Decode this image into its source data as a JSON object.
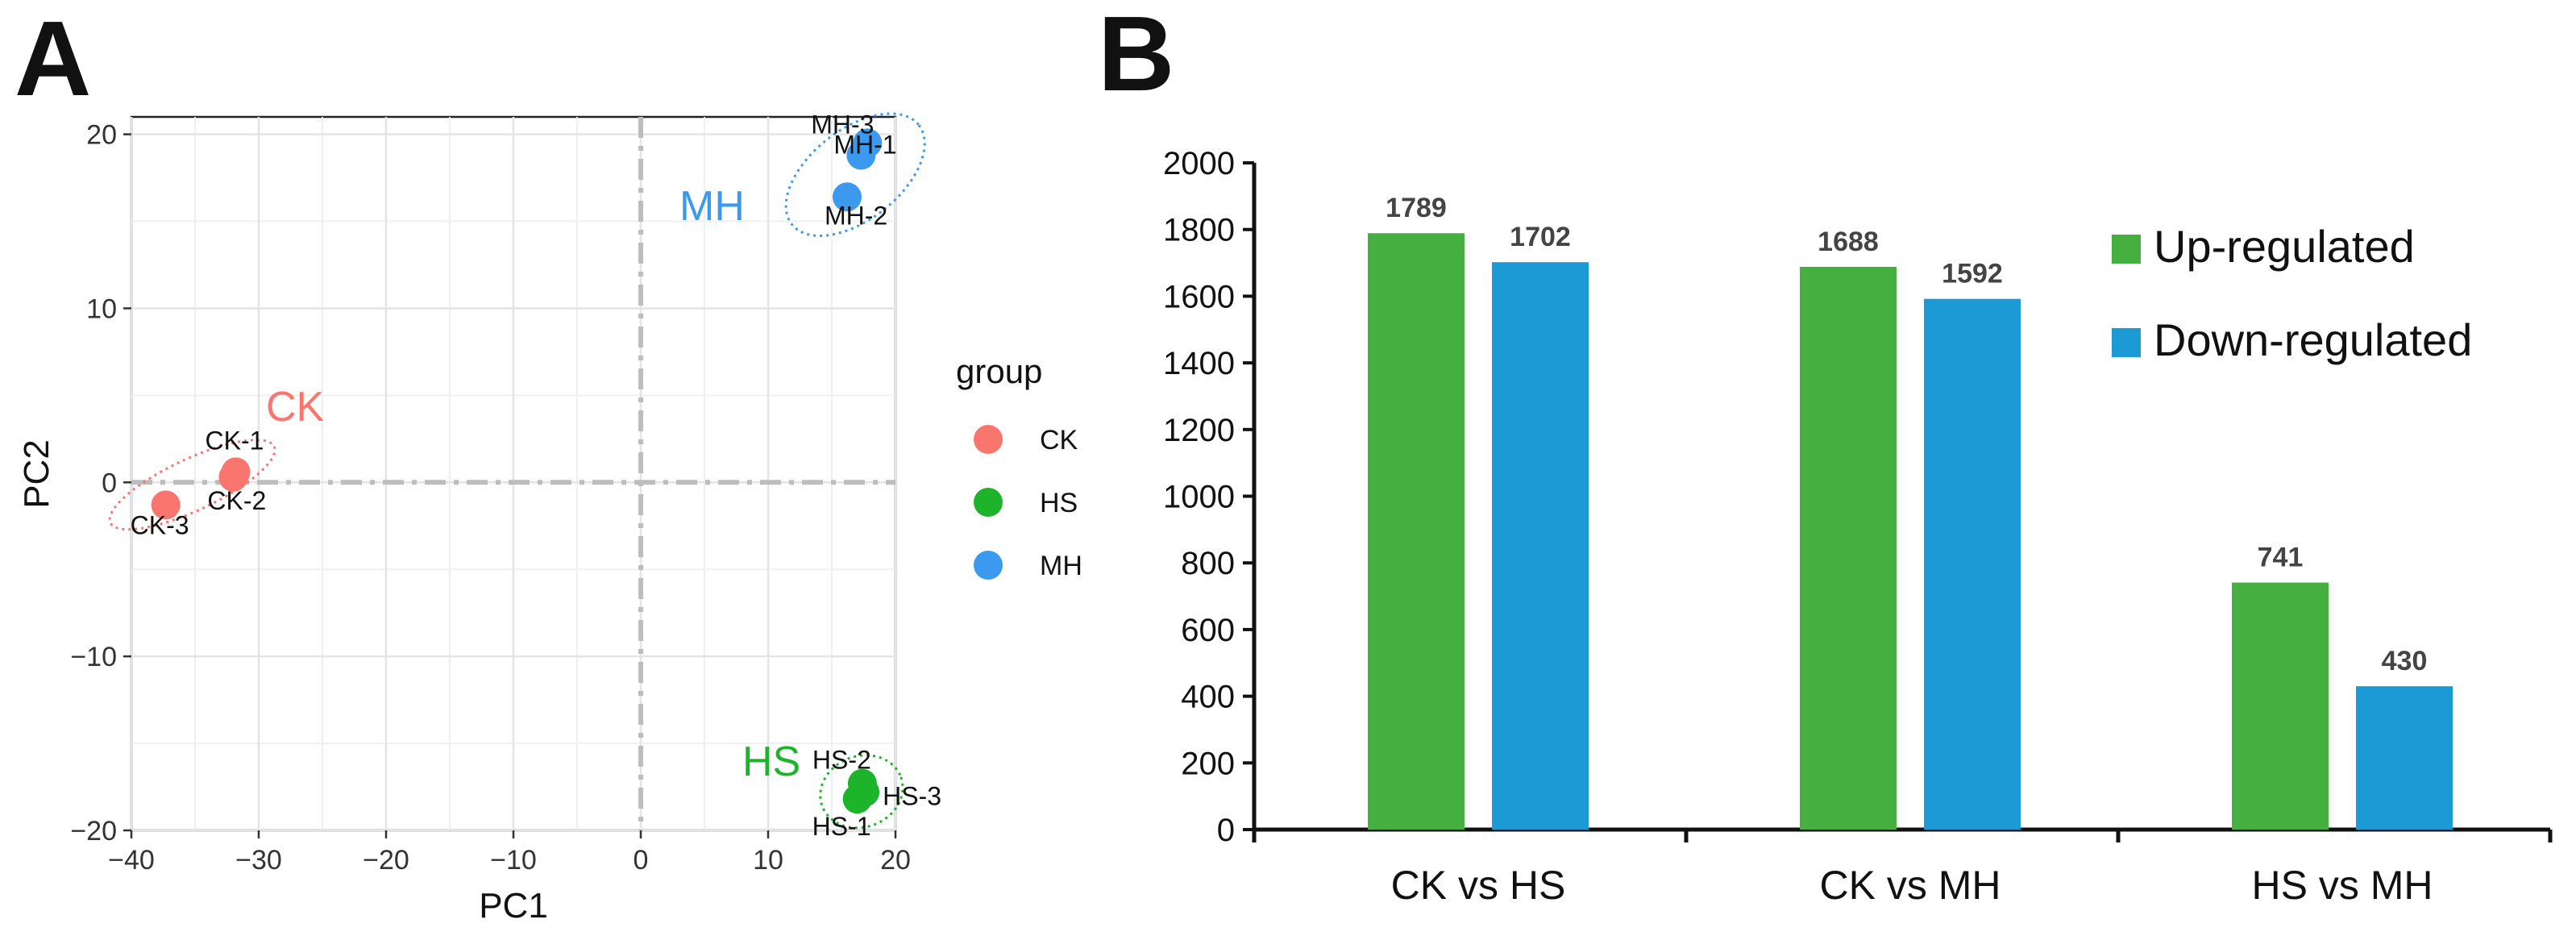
{
  "panels": {
    "a": "A",
    "b": "B"
  },
  "colors": {
    "ck": "#F8766D",
    "hs": "#1DB32B",
    "mh": "#3B9AF0",
    "up": "#45B03F",
    "down": "#1B9AD6"
  },
  "chart_data": [
    {
      "type": "scatter",
      "xlabel": "PC1",
      "ylabel": "PC2",
      "xlim": [
        -40,
        20
      ],
      "ylim": [
        -20,
        21
      ],
      "xticks": [
        -40,
        -30,
        -20,
        -10,
        0,
        10,
        20
      ],
      "yticks": [
        -20,
        -10,
        0,
        10,
        20
      ],
      "xtick_labels": [
        "−40",
        "−30",
        "−20",
        "−10",
        "0",
        "10",
        "20"
      ],
      "ytick_labels": [
        "−20",
        "−10",
        "0",
        "10",
        "20"
      ],
      "grid": true,
      "legend": {
        "title": "group",
        "position": "right",
        "entries": [
          "CK",
          "HS",
          "MH"
        ]
      },
      "groups": [
        {
          "name": "CK",
          "color": "#F8766D",
          "points": [
            {
              "label": "CK-1",
              "x": -31.8,
              "y": 0.6
            },
            {
              "label": "CK-2",
              "x": -32.0,
              "y": 0.3
            },
            {
              "label": "CK-3",
              "x": -37.3,
              "y": -1.3
            }
          ]
        },
        {
          "name": "HS",
          "color": "#1DB32B",
          "points": [
            {
              "label": "HS-1",
              "x": 17.0,
              "y": -18.2
            },
            {
              "label": "HS-2",
              "x": 17.4,
              "y": -17.3
            },
            {
              "label": "HS-3",
              "x": 17.6,
              "y": -17.8
            }
          ]
        },
        {
          "name": "MH",
          "color": "#3B9AF0",
          "points": [
            {
              "label": "MH-1",
              "x": 17.3,
              "y": 18.8
            },
            {
              "label": "MH-2",
              "x": 16.2,
              "y": 16.4
            },
            {
              "label": "MH-3",
              "x": 17.8,
              "y": 19.5
            }
          ]
        }
      ]
    },
    {
      "type": "bar",
      "categories": [
        "CK vs HS",
        "CK vs MH",
        "HS vs MH"
      ],
      "series": [
        {
          "name": "Up-regulated",
          "color": "#45B03F",
          "values": [
            1789,
            1688,
            741
          ]
        },
        {
          "name": "Down-regulated",
          "color": "#1B9AD6",
          "values": [
            1702,
            1592,
            430
          ]
        }
      ],
      "ylim": [
        0,
        2000
      ],
      "yticks": [
        0,
        200,
        400,
        600,
        800,
        1000,
        1200,
        1400,
        1600,
        1800,
        2000
      ],
      "legend": {
        "position": "top-right",
        "entries": [
          "Up-regulated",
          "Down-regulated"
        ]
      },
      "data_labels": true
    }
  ]
}
